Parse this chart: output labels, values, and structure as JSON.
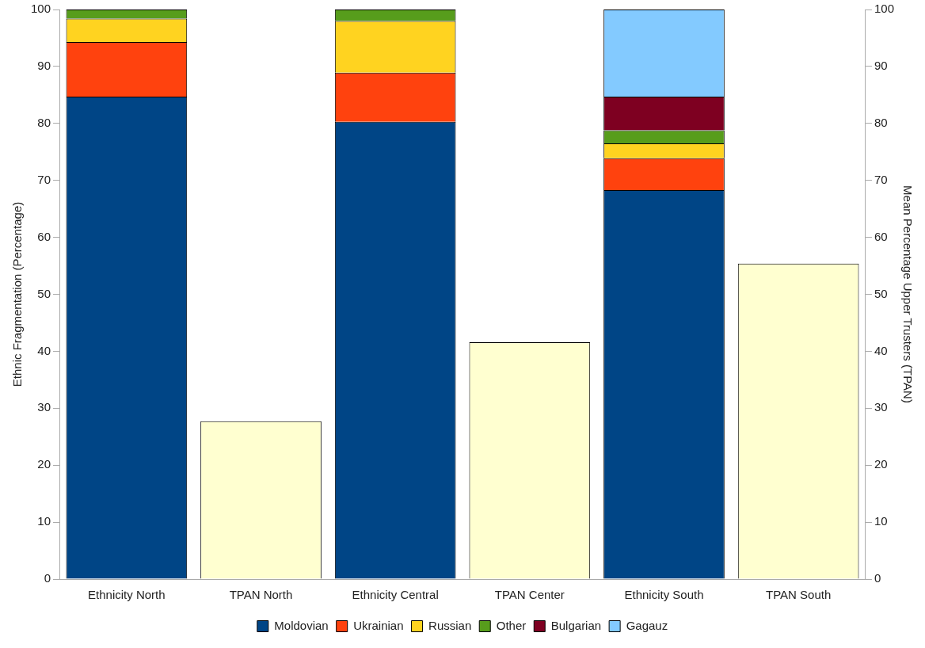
{
  "chart_data": {
    "type": "bar",
    "stacked": true,
    "categories": [
      "Ethnicity North",
      "TPAN North",
      "Ethnicity Central",
      "TPAN Center",
      "Ethnicity South",
      "TPAN South"
    ],
    "ylabel": "Ethnic Fragmentation (Percentage)",
    "y2label": "Mean Percentage Upper Trusters (TPAN)",
    "ylim": [
      0,
      100
    ],
    "yticks": [
      0,
      10,
      20,
      30,
      40,
      50,
      60,
      70,
      80,
      90,
      100
    ],
    "y2lim": [
      0,
      100
    ],
    "y2ticks": [
      0,
      10,
      20,
      30,
      40,
      50,
      60,
      70,
      80,
      90,
      100
    ],
    "grid": false,
    "legend": "bottom",
    "series": [
      {
        "name": "Moldovian",
        "color": "#004586",
        "values": [
          84.7,
          null,
          80.3,
          null,
          68.3,
          null
        ]
      },
      {
        "name": "Ukrainian",
        "color": "#ff420e",
        "values": [
          9.6,
          null,
          8.6,
          null,
          5.6,
          null
        ]
      },
      {
        "name": "Russian",
        "color": "#ffd320",
        "values": [
          4.1,
          null,
          9.1,
          null,
          2.6,
          null
        ]
      },
      {
        "name": "Other",
        "color": "#579d1c",
        "values": [
          1.6,
          null,
          2.0,
          null,
          2.3,
          null
        ]
      },
      {
        "name": "Bulgarian",
        "color": "#7e0021",
        "values": [
          null,
          null,
          null,
          null,
          5.9,
          null
        ]
      },
      {
        "name": "Gagauz",
        "color": "#83caff",
        "values": [
          null,
          null,
          null,
          null,
          15.3,
          null
        ]
      },
      {
        "color": "#ffffd0",
        "axis": "y2",
        "values": [
          null,
          27.7,
          null,
          41.6,
          null,
          55.4
        ]
      }
    ]
  }
}
